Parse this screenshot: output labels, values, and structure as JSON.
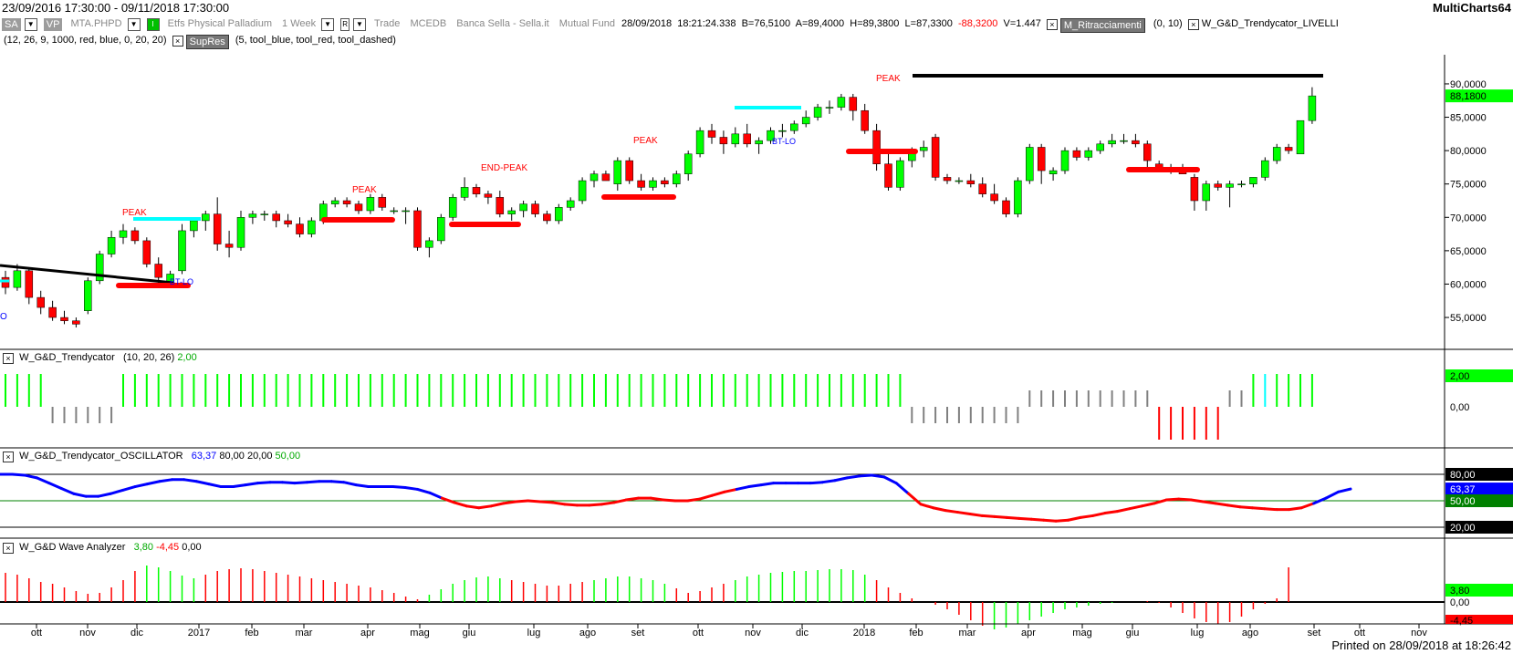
{
  "title": {
    "range": "23/09/2016 17:30:00 - 09/11/2018 17:30:00",
    "app": "MultiCharts64"
  },
  "infobar": {
    "sa": "SA",
    "vp": "VP",
    "symbol": "MTA.PHPD",
    "desc": "Etfs Physical Palladium",
    "interval": "1 Week",
    "r_label": "R",
    "trade": "Trade",
    "exch": "MCEDB",
    "broker": "Banca Sella - Sella.it",
    "type": "Mutual Fund",
    "date": "28/09/2018",
    "time": "18:21:24.338",
    "b": "B=76,5100",
    "a": "A=89,4000",
    "h": "H=89,3800",
    "l": "L=87,3300",
    "chg": "-88,3200",
    "v": "V=1.447",
    "ind1": "M_Ritracciamenti",
    "ind1_params": "(0, 10)",
    "ind2": "W_G&D_Trendycator_LIVELLI"
  },
  "infobar2": {
    "params": "(12, 26, 9, 1000, red, blue, 0, 20, 20)",
    "ind3": "SupRes",
    "ind3_params": "(5, tool_blue, tool_red, tool_dashed)"
  },
  "main_axis": {
    "labels": [
      "90,0000",
      "85,0000",
      "80,0000",
      "75,0000",
      "70,0000",
      "65,0000",
      "60,0000",
      "55,0000"
    ],
    "last": "88,1800"
  },
  "chart_labels": {
    "peak": "PEAK",
    "end_peak": "END-PEAK",
    "btlo": "BT-LO",
    "o": "O"
  },
  "panel1": {
    "name": "W_G&D_Trendycator",
    "params": "(10, 20, 26)",
    "value": "2,00",
    "axis": [
      "2,00",
      "0,00"
    ]
  },
  "panel2": {
    "name": "W_G&D_Trendycator_OSCILLATOR",
    "v1": "63,37",
    "v2": "80,00",
    "v3": "20,00",
    "v4": "50,00",
    "axis": [
      "80,00",
      "63,37",
      "50,00",
      "20,00"
    ]
  },
  "panel3": {
    "name": "W_G&D Wave Analyzer",
    "v1": "3,80",
    "v2": "-4,45",
    "v3": "0,00",
    "axis": [
      "3,80",
      "0,00",
      "-4,45"
    ]
  },
  "time_axis": [
    "ott",
    "nov",
    "dic",
    "2017",
    "feb",
    "mar",
    "apr",
    "mag",
    "giu",
    "lug",
    "ago",
    "set",
    "ott",
    "nov",
    "dic",
    "2018",
    "feb",
    "mar",
    "apr",
    "mag",
    "giu",
    "lug",
    "ago",
    "set",
    "ott",
    "nov"
  ],
  "footer": "Printed on 28/09/2018 at 18:26:42",
  "colors": {
    "up": "#00ff00",
    "down": "#ff0000",
    "osc_up": "#0000ff",
    "osc_down": "#ff0000",
    "cyan": "#00ffff",
    "axis_green": "#00ff00",
    "grey": "#808080"
  },
  "chart_data": {
    "type": "candlestick",
    "interval": "1 Week",
    "ylim": [
      52000,
      93000
    ],
    "yticks": [
      55000,
      60000,
      65000,
      70000,
      75000,
      80000,
      85000,
      90000
    ],
    "ohlc": [
      [
        61000,
        62000,
        58500,
        59500
      ],
      [
        59500,
        63000,
        59000,
        62000
      ],
      [
        62000,
        62500,
        57000,
        58000
      ],
      [
        58000,
        59000,
        55500,
        56500
      ],
      [
        56500,
        57500,
        54500,
        55000
      ],
      [
        55000,
        56000,
        54000,
        54500
      ],
      [
        54500,
        55000,
        53500,
        54000
      ],
      [
        56000,
        61000,
        55500,
        60500
      ],
      [
        60500,
        65000,
        60000,
        64500
      ],
      [
        64500,
        68000,
        64000,
        67000
      ],
      [
        67000,
        69000,
        66000,
        68000
      ],
      [
        68000,
        68500,
        66000,
        66500
      ],
      [
        66500,
        67000,
        62500,
        63000
      ],
      [
        63000,
        64000,
        60000,
        61000
      ],
      [
        60000,
        62000,
        59500,
        61500
      ],
      [
        62000,
        69000,
        61500,
        68000
      ],
      [
        68000,
        70000,
        67000,
        69500
      ],
      [
        69500,
        71000,
        68000,
        70500
      ],
      [
        70500,
        73000,
        65000,
        66000
      ],
      [
        66000,
        68000,
        64000,
        65500
      ],
      [
        65500,
        71000,
        65000,
        70000
      ],
      [
        70000,
        71000,
        69000,
        70500
      ],
      [
        70500,
        71000,
        69500,
        70500
      ],
      [
        70500,
        71000,
        68500,
        69500
      ],
      [
        69500,
        70500,
        68500,
        69000
      ],
      [
        69000,
        70000,
        67000,
        67500
      ],
      [
        67500,
        70000,
        67000,
        69500
      ],
      [
        69500,
        72500,
        69000,
        72000
      ],
      [
        72000,
        73000,
        71500,
        72500
      ],
      [
        72500,
        73000,
        71500,
        72000
      ],
      [
        72000,
        72500,
        70500,
        71000
      ],
      [
        71000,
        73500,
        70500,
        73000
      ],
      [
        73000,
        73500,
        71000,
        71500
      ],
      [
        71000,
        71500,
        70500,
        71000
      ],
      [
        71000,
        71500,
        69000,
        71000
      ],
      [
        71000,
        71500,
        65000,
        65500
      ],
      [
        65500,
        67000,
        64000,
        66500
      ],
      [
        66500,
        70500,
        66000,
        70000
      ],
      [
        70000,
        73500,
        69500,
        73000
      ],
      [
        73000,
        76000,
        72500,
        74500
      ],
      [
        74500,
        75000,
        73000,
        73500
      ],
      [
        73500,
        74000,
        72000,
        73000
      ],
      [
        73000,
        74000,
        70000,
        70500
      ],
      [
        70500,
        71500,
        69500,
        71000
      ],
      [
        71000,
        72500,
        70000,
        72000
      ],
      [
        72000,
        72500,
        70000,
        70500
      ],
      [
        70500,
        71000,
        69000,
        69500
      ],
      [
        69500,
        72000,
        69000,
        71500
      ],
      [
        71500,
        73000,
        71000,
        72500
      ],
      [
        72500,
        76000,
        72000,
        75500
      ],
      [
        75500,
        77000,
        74500,
        76500
      ],
      [
        76500,
        77000,
        75500,
        75500
      ],
      [
        75000,
        79000,
        74000,
        78500
      ],
      [
        78500,
        79000,
        75000,
        75500
      ],
      [
        75500,
        76500,
        74000,
        74500
      ],
      [
        74500,
        76000,
        74000,
        75500
      ],
      [
        75500,
        76000,
        74500,
        75000
      ],
      [
        75000,
        77000,
        74500,
        76500
      ],
      [
        76500,
        80000,
        75500,
        79500
      ],
      [
        79500,
        83500,
        79000,
        83000
      ],
      [
        83000,
        84000,
        81000,
        82000
      ],
      [
        82000,
        83000,
        79500,
        81000
      ],
      [
        81000,
        83500,
        80500,
        82500
      ],
      [
        82500,
        84000,
        80500,
        81000
      ],
      [
        81000,
        82000,
        79500,
        81500
      ],
      [
        81500,
        83500,
        81000,
        83000
      ],
      [
        83000,
        84000,
        82000,
        83000
      ],
      [
        83000,
        84500,
        82500,
        84000
      ],
      [
        84000,
        86000,
        83500,
        85000
      ],
      [
        85000,
        87000,
        84500,
        86500
      ],
      [
        86500,
        87500,
        85500,
        86500
      ],
      [
        86500,
        88500,
        86000,
        88000
      ],
      [
        88000,
        88500,
        84500,
        86000
      ],
      [
        86000,
        87000,
        82500,
        83000
      ],
      [
        83000,
        84000,
        77000,
        78000
      ],
      [
        78000,
        79500,
        74000,
        74500
      ],
      [
        74500,
        79000,
        74000,
        78500
      ],
      [
        78500,
        80500,
        77500,
        80000
      ],
      [
        80000,
        81500,
        79000,
        80500
      ],
      [
        82000,
        82500,
        75500,
        76000
      ],
      [
        76000,
        76500,
        75000,
        75500
      ],
      [
        75500,
        76000,
        75000,
        75500
      ],
      [
        75500,
        76500,
        74500,
        75000
      ],
      [
        75000,
        76000,
        73000,
        73500
      ],
      [
        73500,
        75000,
        72000,
        72500
      ],
      [
        72500,
        73000,
        70000,
        70500
      ],
      [
        70500,
        76000,
        70000,
        75500
      ],
      [
        75500,
        81000,
        75000,
        80500
      ],
      [
        80500,
        81000,
        75000,
        77000
      ],
      [
        76500,
        77500,
        75500,
        77000
      ],
      [
        77000,
        80500,
        76500,
        80000
      ],
      [
        80000,
        80500,
        78500,
        79000
      ],
      [
        79000,
        80500,
        78500,
        80000
      ],
      [
        80000,
        81500,
        79500,
        81000
      ],
      [
        81000,
        82500,
        80500,
        81500
      ],
      [
        81500,
        82500,
        81000,
        81500
      ],
      [
        81500,
        82500,
        80500,
        81000
      ],
      [
        81000,
        81500,
        77500,
        78500
      ],
      [
        78000,
        78500,
        77000,
        77500
      ],
      [
        77500,
        78000,
        76500,
        77000
      ],
      [
        77000,
        78000,
        76500,
        76500
      ],
      [
        76000,
        76500,
        71000,
        72500
      ],
      [
        72500,
        75500,
        71000,
        75000
      ],
      [
        75000,
        75500,
        74000,
        74500
      ],
      [
        74500,
        75500,
        71500,
        75000
      ],
      [
        75000,
        75500,
        74500,
        75000
      ],
      [
        75000,
        76000,
        74500,
        76000
      ],
      [
        76000,
        79000,
        75500,
        78500
      ],
      [
        78500,
        81000,
        78000,
        80500
      ],
      [
        80500,
        81000,
        79500,
        80000
      ],
      [
        79500,
        84500,
        79500,
        84500
      ],
      [
        84500,
        89500,
        84000,
        88200
      ]
    ],
    "series": [
      {
        "name": "W_G&D_Trendycator",
        "type": "step-bars",
        "values_desc": "+2 green (uptrend) / +1 grey / -1 grey / -2 red",
        "last": 2.0
      },
      {
        "name": "W_G&D_Trendycator_OSCILLATOR",
        "type": "line",
        "levels": [
          80,
          50,
          20
        ],
        "last": 63.37
      },
      {
        "name": "W_G&D Wave Analyzer",
        "type": "histogram",
        "last_values": [
          3.8,
          -4.45,
          0.0
        ]
      }
    ]
  }
}
